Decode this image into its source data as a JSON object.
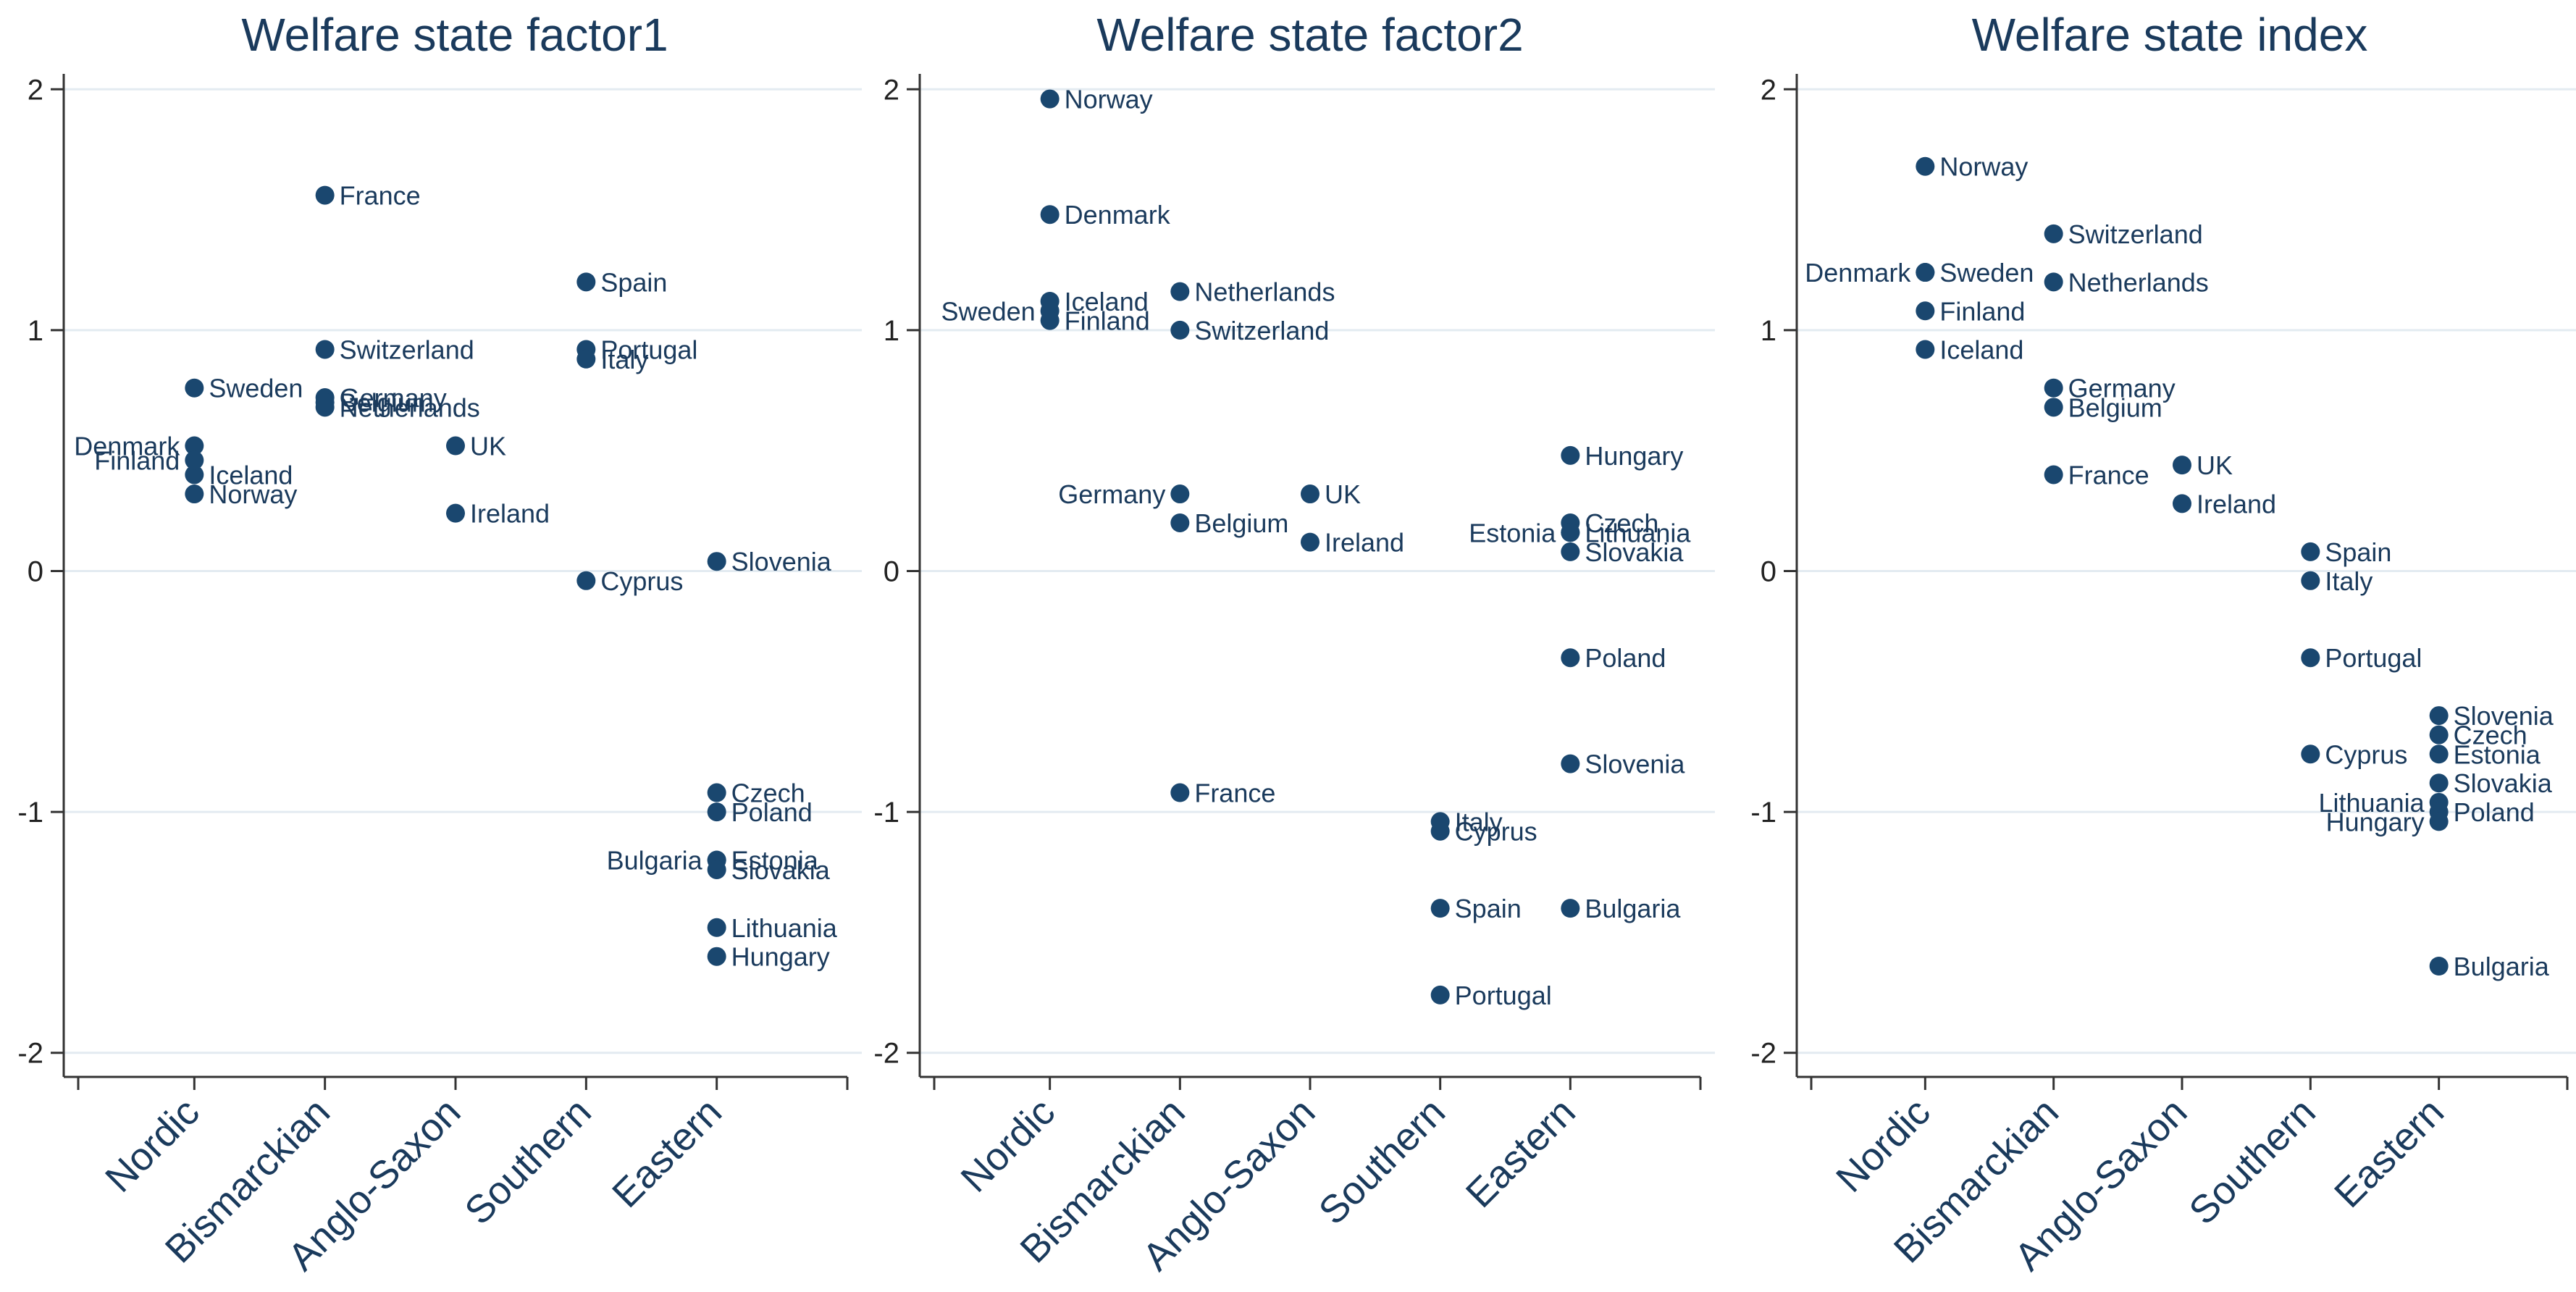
{
  "chart_data": [
    {
      "type": "scatter",
      "title": "Welfare state factor1",
      "xlabel": "",
      "ylabel": "",
      "ylim": [
        -2.1,
        2.1
      ],
      "yticks": [
        -2,
        -1,
        0,
        1,
        2
      ],
      "yticklabels": [
        "-2",
        "-1",
        "0",
        "1",
        "2"
      ],
      "categories": [
        "Nordic",
        "Bismarckian",
        "Anglo-Saxon",
        "Southern",
        "Eastern"
      ],
      "grid": true,
      "color": "#1a476f",
      "points": [
        {
          "group": "Nordic",
          "country": "Sweden",
          "value": 0.76,
          "label_side": "right"
        },
        {
          "group": "Nordic",
          "country": "Denmark",
          "value": 0.52,
          "label_side": "left"
        },
        {
          "group": "Nordic",
          "country": "Iceland",
          "value": 0.4,
          "label_side": "right"
        },
        {
          "group": "Nordic",
          "country": "Finland",
          "value": 0.46,
          "label_side": "left"
        },
        {
          "group": "Nordic",
          "country": "Norway",
          "value": 0.32,
          "label_side": "right"
        },
        {
          "group": "Bismarckian",
          "country": "France",
          "value": 1.56,
          "label_side": "right"
        },
        {
          "group": "Bismarckian",
          "country": "Switzerland",
          "value": 0.92,
          "label_side": "right"
        },
        {
          "group": "Bismarckian",
          "country": "Germany",
          "value": 0.72,
          "label_side": "right"
        },
        {
          "group": "Bismarckian",
          "country": "Netherlands",
          "value": 0.68,
          "label_side": "right"
        },
        {
          "group": "Bismarckian",
          "country": "Belgium",
          "value": 0.7,
          "label_side": "right"
        },
        {
          "group": "Anglo-Saxon",
          "country": "UK",
          "value": 0.52,
          "label_side": "right"
        },
        {
          "group": "Anglo-Saxon",
          "country": "Ireland",
          "value": 0.24,
          "label_side": "right"
        },
        {
          "group": "Southern",
          "country": "Spain",
          "value": 1.2,
          "label_side": "right"
        },
        {
          "group": "Southern",
          "country": "Portugal",
          "value": 0.92,
          "label_side": "right"
        },
        {
          "group": "Southern",
          "country": "Italy",
          "value": 0.88,
          "label_side": "right"
        },
        {
          "group": "Southern",
          "country": "Cyprus",
          "value": -0.04,
          "label_side": "right"
        },
        {
          "group": "Eastern",
          "country": "Slovenia",
          "value": 0.04,
          "label_side": "right"
        },
        {
          "group": "Eastern",
          "country": "Czech",
          "value": -0.92,
          "label_side": "right"
        },
        {
          "group": "Eastern",
          "country": "Poland",
          "value": -1.0,
          "label_side": "right"
        },
        {
          "group": "Eastern",
          "country": "Bulgaria",
          "value": -1.2,
          "label_side": "left"
        },
        {
          "group": "Eastern",
          "country": "Estonia",
          "value": -1.2,
          "label_side": "right"
        },
        {
          "group": "Eastern",
          "country": "Slovakia",
          "value": -1.24,
          "label_side": "right"
        },
        {
          "group": "Eastern",
          "country": "Lithuania",
          "value": -1.48,
          "label_side": "right"
        },
        {
          "group": "Eastern",
          "country": "Hungary",
          "value": -1.6,
          "label_side": "right"
        }
      ]
    },
    {
      "type": "scatter",
      "title": "Welfare state factor2",
      "xlabel": "",
      "ylabel": "",
      "ylim": [
        -2.1,
        2.1
      ],
      "yticks": [
        -2,
        -1,
        0,
        1,
        2
      ],
      "yticklabels": [
        "-2",
        "-1",
        "0",
        "1",
        "2"
      ],
      "categories": [
        "Nordic",
        "Bismarckian",
        "Anglo-Saxon",
        "Southern",
        "Eastern"
      ],
      "grid": true,
      "color": "#1a476f",
      "points": [
        {
          "group": "Nordic",
          "country": "Norway",
          "value": 1.96,
          "label_side": "right"
        },
        {
          "group": "Nordic",
          "country": "Denmark",
          "value": 1.48,
          "label_side": "right"
        },
        {
          "group": "Nordic",
          "country": "Iceland",
          "value": 1.12,
          "label_side": "right"
        },
        {
          "group": "Nordic",
          "country": "Sweden",
          "value": 1.08,
          "label_side": "left"
        },
        {
          "group": "Nordic",
          "country": "Finland",
          "value": 1.04,
          "label_side": "right"
        },
        {
          "group": "Bismarckian",
          "country": "Netherlands",
          "value": 1.16,
          "label_side": "right"
        },
        {
          "group": "Bismarckian",
          "country": "Switzerland",
          "value": 1.0,
          "label_side": "right"
        },
        {
          "group": "Bismarckian",
          "country": "Germany",
          "value": 0.32,
          "label_side": "left"
        },
        {
          "group": "Bismarckian",
          "country": "Belgium",
          "value": 0.2,
          "label_side": "right"
        },
        {
          "group": "Bismarckian",
          "country": "France",
          "value": -0.92,
          "label_side": "right"
        },
        {
          "group": "Anglo-Saxon",
          "country": "UK",
          "value": 0.32,
          "label_side": "right"
        },
        {
          "group": "Anglo-Saxon",
          "country": "Ireland",
          "value": 0.12,
          "label_side": "right"
        },
        {
          "group": "Southern",
          "country": "Italy",
          "value": -1.04,
          "label_side": "right"
        },
        {
          "group": "Southern",
          "country": "Cyprus",
          "value": -1.08,
          "label_side": "right"
        },
        {
          "group": "Southern",
          "country": "Spain",
          "value": -1.4,
          "label_side": "right"
        },
        {
          "group": "Southern",
          "country": "Portugal",
          "value": -1.76,
          "label_side": "right"
        },
        {
          "group": "Eastern",
          "country": "Hungary",
          "value": 0.48,
          "label_side": "right"
        },
        {
          "group": "Eastern",
          "country": "Czech",
          "value": 0.2,
          "label_side": "right"
        },
        {
          "group": "Eastern",
          "country": "Estonia",
          "value": 0.16,
          "label_side": "left"
        },
        {
          "group": "Eastern",
          "country": "Lithuania",
          "value": 0.16,
          "label_side": "right"
        },
        {
          "group": "Eastern",
          "country": "Slovakia",
          "value": 0.08,
          "label_side": "right"
        },
        {
          "group": "Eastern",
          "country": "Poland",
          "value": -0.36,
          "label_side": "right"
        },
        {
          "group": "Eastern",
          "country": "Slovenia",
          "value": -0.8,
          "label_side": "right"
        },
        {
          "group": "Eastern",
          "country": "Bulgaria",
          "value": -1.4,
          "label_side": "right"
        }
      ]
    },
    {
      "type": "scatter",
      "title": "Welfare state index",
      "xlabel": "",
      "ylabel": "",
      "ylim": [
        -2.1,
        2.1
      ],
      "yticks": [
        -2,
        -1,
        0,
        1,
        2
      ],
      "yticklabels": [
        "-2",
        "-1",
        "0",
        "1",
        "2"
      ],
      "categories": [
        "Nordic",
        "Bismarckian",
        "Anglo-Saxon",
        "Southern",
        "Eastern"
      ],
      "grid": true,
      "color": "#1a476f",
      "points": [
        {
          "group": "Nordic",
          "country": "Norway",
          "value": 1.68,
          "label_side": "right"
        },
        {
          "group": "Nordic",
          "country": "Denmark",
          "value": 1.24,
          "label_side": "left"
        },
        {
          "group": "Nordic",
          "country": "Sweden",
          "value": 1.24,
          "label_side": "right"
        },
        {
          "group": "Nordic",
          "country": "Finland",
          "value": 1.08,
          "label_side": "right"
        },
        {
          "group": "Nordic",
          "country": "Iceland",
          "value": 0.92,
          "label_side": "right"
        },
        {
          "group": "Bismarckian",
          "country": "Switzerland",
          "value": 1.4,
          "label_side": "right"
        },
        {
          "group": "Bismarckian",
          "country": "Netherlands",
          "value": 1.2,
          "label_side": "right"
        },
        {
          "group": "Bismarckian",
          "country": "Germany",
          "value": 0.76,
          "label_side": "right"
        },
        {
          "group": "Bismarckian",
          "country": "Belgium",
          "value": 0.68,
          "label_side": "right"
        },
        {
          "group": "Bismarckian",
          "country": "France",
          "value": 0.4,
          "label_side": "right"
        },
        {
          "group": "Anglo-Saxon",
          "country": "UK",
          "value": 0.44,
          "label_side": "right"
        },
        {
          "group": "Anglo-Saxon",
          "country": "Ireland",
          "value": 0.28,
          "label_side": "right"
        },
        {
          "group": "Southern",
          "country": "Spain",
          "value": 0.08,
          "label_side": "right"
        },
        {
          "group": "Southern",
          "country": "Italy",
          "value": -0.04,
          "label_side": "right"
        },
        {
          "group": "Southern",
          "country": "Portugal",
          "value": -0.36,
          "label_side": "right"
        },
        {
          "group": "Southern",
          "country": "Cyprus",
          "value": -0.76,
          "label_side": "right"
        },
        {
          "group": "Eastern",
          "country": "Slovenia",
          "value": -0.6,
          "label_side": "right"
        },
        {
          "group": "Eastern",
          "country": "Czech",
          "value": -0.68,
          "label_side": "right"
        },
        {
          "group": "Eastern",
          "country": "Estonia",
          "value": -0.76,
          "label_side": "right"
        },
        {
          "group": "Eastern",
          "country": "Slovakia",
          "value": -0.88,
          "label_side": "right"
        },
        {
          "group": "Eastern",
          "country": "Lithuania",
          "value": -0.96,
          "label_side": "left"
        },
        {
          "group": "Eastern",
          "country": "Poland",
          "value": -1.0,
          "label_side": "right"
        },
        {
          "group": "Eastern",
          "country": "Hungary",
          "value": -1.04,
          "label_side": "left"
        },
        {
          "group": "Eastern",
          "country": "Bulgaria",
          "value": -1.64,
          "label_side": "right"
        }
      ]
    }
  ]
}
